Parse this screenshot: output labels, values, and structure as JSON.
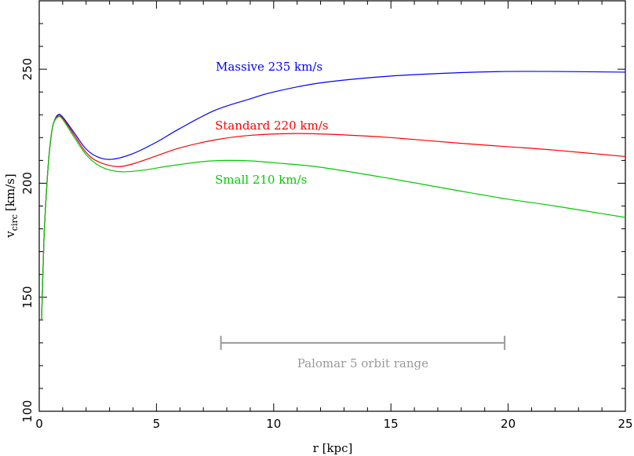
{
  "chart_data": {
    "type": "line",
    "xlabel": "r [kpc]",
    "ylabel_main": "v",
    "ylabel_sub": "circ",
    "ylabel_unit": "[km/s]",
    "xlim": [
      0,
      25
    ],
    "ylim": [
      100,
      280
    ],
    "xticks": [
      0,
      5,
      10,
      15,
      20,
      25
    ],
    "yticks": [
      100,
      150,
      200,
      250
    ],
    "grid": false,
    "series": [
      {
        "name": "Massive 235 km/s",
        "color": "#0000ff",
        "x": [
          0.1,
          0.2,
          0.3,
          0.4,
          0.5,
          0.6,
          0.8,
          1.0,
          1.5,
          2.0,
          2.5,
          3.1,
          4,
          5,
          6,
          7.5,
          9,
          10,
          12,
          15,
          18,
          20,
          22,
          25
        ],
        "y": [
          140,
          175,
          195,
          210,
          220,
          226,
          230,
          229,
          222,
          215,
          211.5,
          210.5,
          213,
          218,
          224,
          232,
          237,
          240,
          244,
          247,
          248.5,
          249,
          249,
          248.7
        ]
      },
      {
        "name": "Standard 220 km/s",
        "color": "#ff0000",
        "x": [
          0.1,
          0.2,
          0.3,
          0.4,
          0.5,
          0.6,
          0.8,
          1.0,
          1.5,
          2.0,
          2.5,
          3.3,
          4,
          5,
          6,
          7.5,
          9,
          11,
          13,
          15,
          18,
          20,
          22,
          25
        ],
        "y": [
          140,
          175,
          195,
          210,
          220,
          226,
          229.5,
          228.5,
          221,
          213.5,
          209.5,
          207.3,
          208.5,
          212,
          215.5,
          219,
          221,
          221.8,
          221.2,
          220,
          217.5,
          216,
          214.5,
          211.7
        ]
      },
      {
        "name": "Small 210 km/s",
        "color": "#00cc00",
        "x": [
          0.1,
          0.2,
          0.3,
          0.4,
          0.5,
          0.6,
          0.8,
          1.0,
          1.5,
          2.0,
          2.5,
          3.0,
          3.6,
          4.5,
          5.5,
          7,
          8,
          9,
          10,
          12,
          15,
          18,
          20,
          22,
          25
        ],
        "y": [
          140,
          175,
          195,
          210,
          220,
          226,
          229,
          228,
          220,
          212.5,
          208,
          205.8,
          205,
          205.8,
          207.5,
          209.5,
          210,
          209.8,
          209,
          207,
          202,
          196.5,
          193,
          190,
          185
        ]
      }
    ],
    "annotations": [
      {
        "text": "Palomar 5 orbit range",
        "color": "#999999",
        "x_range": [
          7.75,
          19.85
        ],
        "y": 130
      }
    ]
  }
}
